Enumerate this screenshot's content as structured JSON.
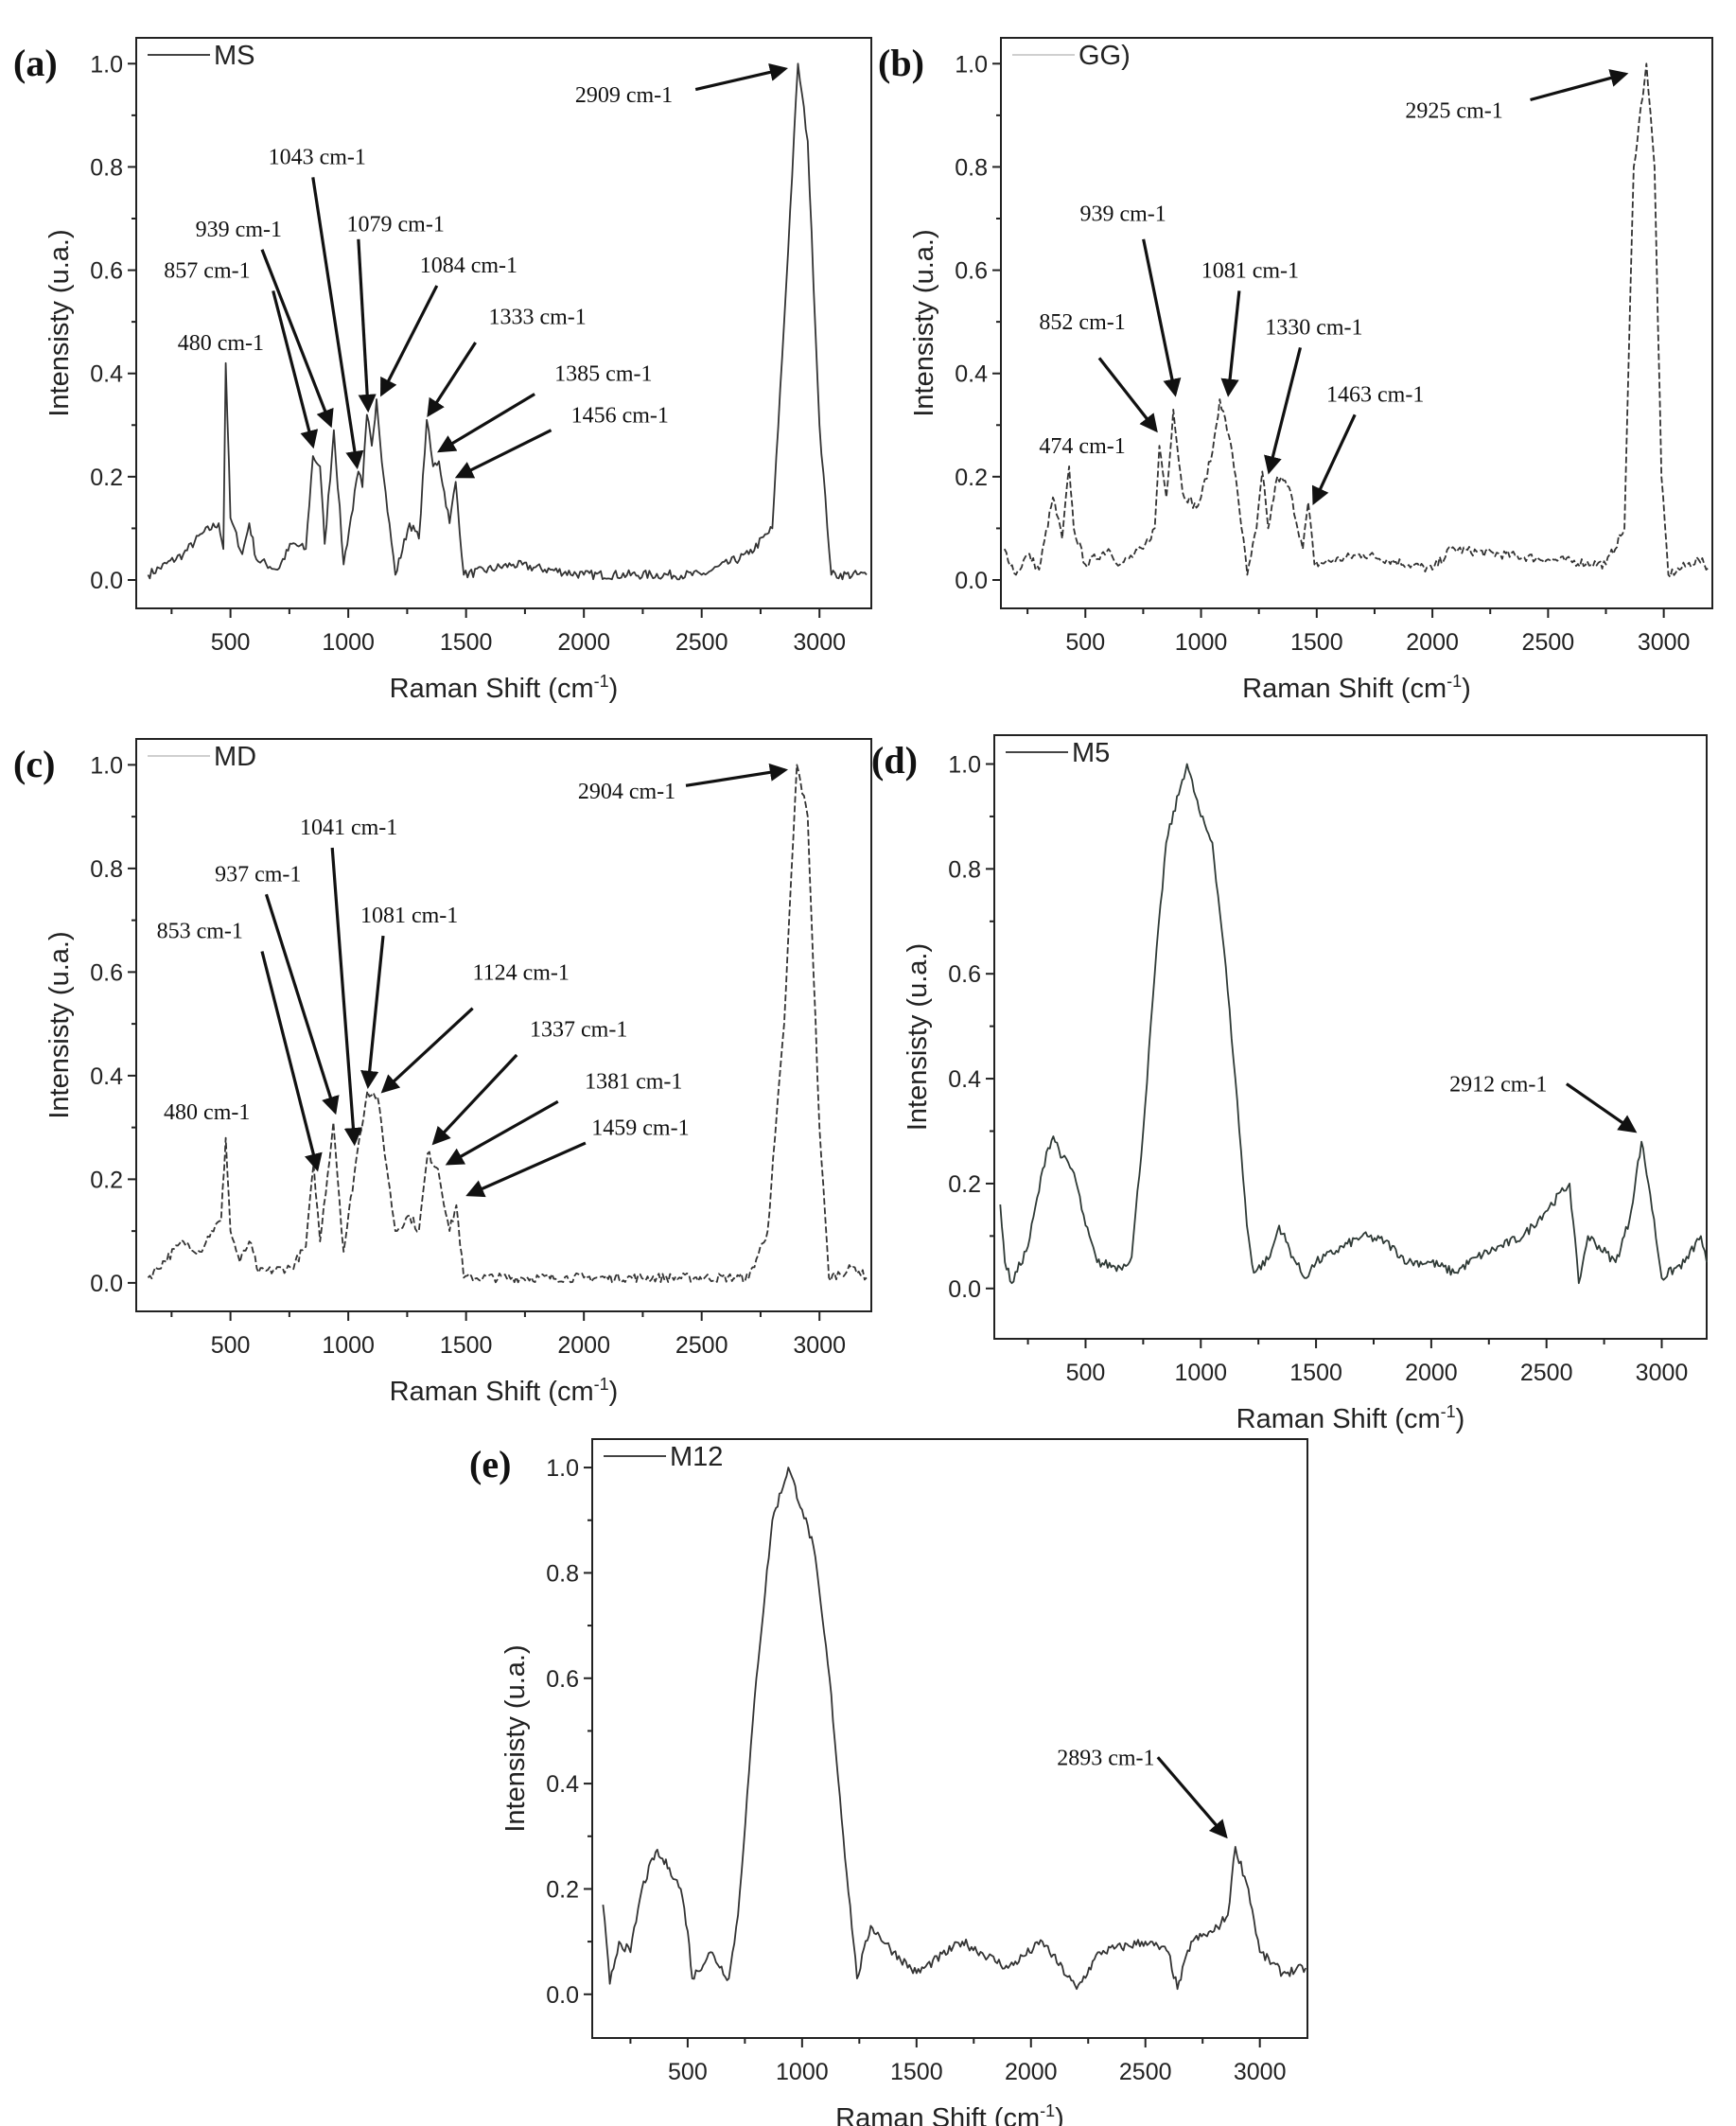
{
  "chart_data": [
    {
      "type": "line",
      "panel_label": "(a)",
      "legend": "MS",
      "line_style": "solid",
      "line_color": "#333333",
      "xlabel": "Raman Shift (cm-1)",
      "ylabel": "Intensisty (u.a.)",
      "xlim": [
        100,
        3220
      ],
      "ylim": [
        -0.055,
        1.05
      ],
      "xticks": [
        500,
        1000,
        1500,
        2000,
        2500,
        3000
      ],
      "xtick_labels": [
        "500",
        "1000",
        "1500",
        "2000",
        "2500",
        "3000"
      ],
      "yticks": [
        0,
        0.2,
        0.4,
        0.6,
        0.8,
        1.0
      ],
      "ytick_labels": [
        "0.0",
        "0.2",
        "0.4",
        "0.6",
        "0.8",
        "1.0"
      ],
      "x": [
        150,
        300,
        380,
        450,
        470,
        480,
        500,
        550,
        580,
        610,
        700,
        760,
        820,
        850,
        880,
        900,
        939,
        980,
        1043,
        1060,
        1079,
        1100,
        1120,
        1150,
        1200,
        1260,
        1300,
        1333,
        1360,
        1385,
        1430,
        1456,
        1490,
        1700,
        2000,
        2500,
        2700,
        2800,
        2850,
        2909,
        2950,
        3000,
        3050,
        3200
      ],
      "y": [
        0.01,
        0.05,
        0.09,
        0.11,
        0.06,
        0.42,
        0.12,
        0.05,
        0.11,
        0.04,
        0.02,
        0.07,
        0.06,
        0.24,
        0.22,
        0.07,
        0.29,
        0.03,
        0.21,
        0.18,
        0.32,
        0.26,
        0.35,
        0.2,
        0.01,
        0.11,
        0.08,
        0.31,
        0.22,
        0.23,
        0.11,
        0.19,
        0.01,
        0.03,
        0.01,
        0.01,
        0.05,
        0.1,
        0.5,
        1.0,
        0.85,
        0.3,
        0.01,
        0.01
      ],
      "annotations": [
        {
          "label": "480 cm-1",
          "text_at": [
            459,
            0.46
          ]
        },
        {
          "label": "857 cm-1",
          "text_at": [
            401,
            0.6
          ],
          "arrow_from": [
            681,
            0.56
          ],
          "arrow_to": [
            850,
            0.26
          ]
        },
        {
          "label": "939 cm-1",
          "text_at": [
            535,
            0.68
          ],
          "arrow_from": [
            634,
            0.64
          ],
          "arrow_to": [
            925,
            0.3
          ]
        },
        {
          "label": "1043 cm-1",
          "text_at": [
            868,
            0.82
          ],
          "arrow_from": [
            850,
            0.78
          ],
          "arrow_to": [
            1037,
            0.22
          ]
        },
        {
          "label": "1079 cm-1",
          "text_at": [
            1201,
            0.69
          ],
          "arrow_from": [
            1043,
            0.66
          ],
          "arrow_to": [
            1084,
            0.33
          ]
        },
        {
          "label": "1084 cm-1",
          "text_at": [
            1511,
            0.61
          ],
          "arrow_from": [
            1376,
            0.57
          ],
          "arrow_to": [
            1142,
            0.36
          ]
        },
        {
          "label": "1333 cm-1",
          "text_at": [
            1803,
            0.51
          ],
          "arrow_from": [
            1540,
            0.46
          ],
          "arrow_to": [
            1341,
            0.32
          ]
        },
        {
          "label": "1385 cm-1",
          "text_at": [
            2083,
            0.4
          ],
          "arrow_from": [
            1791,
            0.36
          ],
          "arrow_to": [
            1388,
            0.25
          ]
        },
        {
          "label": "1456 cm-1",
          "text_at": [
            2153,
            0.32
          ],
          "arrow_from": [
            1861,
            0.29
          ],
          "arrow_to": [
            1464,
            0.2
          ]
        },
        {
          "label": "2909 cm-1",
          "text_at": [
            2170,
            0.94
          ],
          "arrow_from": [
            2474,
            0.95
          ],
          "arrow_to": [
            2854,
            0.99
          ]
        }
      ]
    },
    {
      "type": "line",
      "panel_label": "(b)",
      "legend": "GG)",
      "line_style": "dashed",
      "line_color": "#333333",
      "xlabel": "Raman Shift (cm-1)",
      "ylabel": "Intensisty (u.a.)",
      "xlim": [
        135,
        3210
      ],
      "ylim": [
        -0.055,
        1.05
      ],
      "xticks": [
        500,
        1000,
        1500,
        2000,
        2500,
        3000
      ],
      "xtick_labels": [
        "500",
        "1000",
        "1500",
        "2000",
        "2500",
        "3000"
      ],
      "yticks": [
        0,
        0.2,
        0.4,
        0.6,
        0.8,
        1.0
      ],
      "ytick_labels": [
        "0.0",
        "0.2",
        "0.4",
        "0.6",
        "0.8",
        "1.0"
      ],
      "x": [
        150,
        200,
        250,
        300,
        360,
        400,
        430,
        450,
        500,
        600,
        650,
        750,
        800,
        820,
        850,
        880,
        920,
        980,
        1000,
        1050,
        1081,
        1120,
        1150,
        1200,
        1240,
        1265,
        1290,
        1330,
        1380,
        1440,
        1463,
        1490,
        1700,
        2000,
        2080,
        2500,
        2750,
        2830,
        2870,
        2925,
        2960,
        2990,
        3020,
        3150,
        3200
      ],
      "y": [
        0.06,
        0.01,
        0.05,
        0.02,
        0.16,
        0.08,
        0.22,
        0.1,
        0.03,
        0.06,
        0.03,
        0.06,
        0.1,
        0.26,
        0.16,
        0.33,
        0.17,
        0.14,
        0.16,
        0.25,
        0.35,
        0.28,
        0.2,
        0.01,
        0.1,
        0.21,
        0.1,
        0.2,
        0.18,
        0.06,
        0.15,
        0.03,
        0.05,
        0.02,
        0.06,
        0.04,
        0.03,
        0.1,
        0.8,
        1.0,
        0.8,
        0.2,
        0.01,
        0.04,
        0.02
      ],
      "annotations": [
        {
          "label": "474 cm-1",
          "text_at": [
            487,
            0.26
          ]
        },
        {
          "label": "852 cm-1",
          "text_at": [
            487,
            0.5
          ],
          "arrow_from": [
            560,
            0.43
          ],
          "arrow_to": [
            805,
            0.29
          ]
        },
        {
          "label": "939 cm-1",
          "text_at": [
            663,
            0.71
          ],
          "arrow_from": [
            751,
            0.66
          ],
          "arrow_to": [
            888,
            0.36
          ]
        },
        {
          "label": "1081 cm-1",
          "text_at": [
            1212,
            0.6
          ],
          "arrow_from": [
            1165,
            0.56
          ],
          "arrow_to": [
            1118,
            0.36
          ]
        },
        {
          "label": "1330 cm-1",
          "text_at": [
            1488,
            0.49
          ],
          "arrow_from": [
            1429,
            0.45
          ],
          "arrow_to": [
            1294,
            0.21
          ]
        },
        {
          "label": "1463 cm-1",
          "text_at": [
            1753,
            0.36
          ],
          "arrow_from": [
            1665,
            0.32
          ],
          "arrow_to": [
            1488,
            0.15
          ]
        },
        {
          "label": "2925 cm-1",
          "text_at": [
            2094,
            0.91
          ],
          "arrow_from": [
            2423,
            0.93
          ],
          "arrow_to": [
            2835,
            0.98
          ]
        }
      ]
    },
    {
      "type": "line",
      "panel_label": "(c)",
      "legend": "MD",
      "line_style": "dashed",
      "line_color": "#333333",
      "xlabel": "Raman Shift (cm-1)",
      "ylabel": "Intensisty (u.a.)",
      "xlim": [
        100,
        3220
      ],
      "ylim": [
        -0.055,
        1.05
      ],
      "xticks": [
        500,
        1000,
        1500,
        2000,
        2500,
        3000
      ],
      "xtick_labels": [
        "500",
        "1000",
        "1500",
        "2000",
        "2500",
        "3000"
      ],
      "yticks": [
        0,
        0.2,
        0.4,
        0.6,
        0.8,
        1.0
      ],
      "ytick_labels": [
        "0.0",
        "0.2",
        "0.4",
        "0.6",
        "0.8",
        "1.0"
      ],
      "x": [
        150,
        300,
        370,
        420,
        460,
        480,
        500,
        540,
        580,
        620,
        760,
        820,
        853,
        880,
        937,
        980,
        1041,
        1081,
        1124,
        1170,
        1200,
        1260,
        1300,
        1337,
        1381,
        1430,
        1459,
        1490,
        2000,
        2700,
        2780,
        2850,
        2904,
        2950,
        3000,
        3040,
        3150,
        3200
      ],
      "y": [
        0.01,
        0.08,
        0.06,
        0.1,
        0.12,
        0.28,
        0.1,
        0.04,
        0.08,
        0.02,
        0.03,
        0.07,
        0.23,
        0.08,
        0.31,
        0.06,
        0.26,
        0.37,
        0.36,
        0.2,
        0.1,
        0.13,
        0.1,
        0.25,
        0.22,
        0.1,
        0.15,
        0.01,
        0.01,
        0.01,
        0.1,
        0.5,
        1.0,
        0.9,
        0.3,
        0.01,
        0.03,
        0.01
      ],
      "annotations": [
        {
          "label": "480 cm-1",
          "text_at": [
            400,
            0.33
          ]
        },
        {
          "label": "853 cm-1",
          "text_at": [
            370,
            0.68
          ],
          "arrow_from": [
            634,
            0.64
          ],
          "arrow_to": [
            868,
            0.22
          ]
        },
        {
          "label": "937 cm-1",
          "text_at": [
            617,
            0.79
          ],
          "arrow_from": [
            652,
            0.75
          ],
          "arrow_to": [
            944,
            0.33
          ]
        },
        {
          "label": "1041 cm-1",
          "text_at": [
            1002,
            0.88
          ],
          "arrow_from": [
            932,
            0.84
          ],
          "arrow_to": [
            1026,
            0.27
          ]
        },
        {
          "label": "1081 cm-1",
          "text_at": [
            1259,
            0.71
          ],
          "arrow_from": [
            1148,
            0.67
          ],
          "arrow_to": [
            1084,
            0.38
          ]
        },
        {
          "label": "1124 cm-1",
          "text_at": [
            1733,
            0.6
          ],
          "arrow_from": [
            1528,
            0.53
          ],
          "arrow_to": [
            1148,
            0.37
          ]
        },
        {
          "label": "1337 cm-1",
          "text_at": [
            1978,
            0.49
          ],
          "arrow_from": [
            1715,
            0.44
          ],
          "arrow_to": [
            1364,
            0.27
          ]
        },
        {
          "label": "1381 cm-1",
          "text_at": [
            2211,
            0.39
          ],
          "arrow_from": [
            1890,
            0.35
          ],
          "arrow_to": [
            1423,
            0.23
          ]
        },
        {
          "label": "1459 cm-1",
          "text_at": [
            2240,
            0.3
          ],
          "arrow_from": [
            2007,
            0.27
          ],
          "arrow_to": [
            1510,
            0.17
          ]
        },
        {
          "label": "2904 cm-1",
          "text_at": [
            2182,
            0.95
          ],
          "arrow_from": [
            2433,
            0.96
          ],
          "arrow_to": [
            2854,
            0.99
          ]
        }
      ]
    },
    {
      "type": "line",
      "panel_label": "(d)",
      "legend": "M5",
      "line_style": "solid",
      "line_color": "#2f3a36",
      "xlabel": "Raman Shift (cm-1)",
      "ylabel": "Intensisty (u.a.)",
      "xlim": [
        104,
        3195
      ],
      "ylim": [
        -0.096,
        1.055
      ],
      "xticks": [
        500,
        1000,
        1500,
        2000,
        2500,
        3000
      ],
      "xtick_labels": [
        "500",
        "1000",
        "1500",
        "2000",
        "2500",
        "3000"
      ],
      "yticks": [
        0,
        0.2,
        0.4,
        0.6,
        0.8,
        1.0
      ],
      "ytick_labels": [
        "0.0",
        "0.2",
        "0.4",
        "0.6",
        "0.8",
        "1.0"
      ],
      "x": [
        130,
        150,
        180,
        250,
        330,
        360,
        400,
        450,
        500,
        550,
        650,
        700,
        750,
        800,
        850,
        920,
        940,
        1000,
        1050,
        1100,
        1150,
        1200,
        1230,
        1300,
        1340,
        1400,
        1450,
        1500,
        1700,
        1800,
        1900,
        2000,
        2100,
        2200,
        2400,
        2600,
        2640,
        2680,
        2800,
        2860,
        2912,
        2950,
        3000,
        3100,
        3170,
        3195
      ],
      "y": [
        0.16,
        0.05,
        0.01,
        0.08,
        0.26,
        0.29,
        0.25,
        0.22,
        0.12,
        0.05,
        0.04,
        0.06,
        0.3,
        0.6,
        0.85,
        0.97,
        1.0,
        0.9,
        0.85,
        0.65,
        0.4,
        0.12,
        0.03,
        0.06,
        0.12,
        0.06,
        0.02,
        0.05,
        0.1,
        0.09,
        0.05,
        0.05,
        0.03,
        0.06,
        0.1,
        0.2,
        0.01,
        0.1,
        0.05,
        0.13,
        0.28,
        0.18,
        0.02,
        0.05,
        0.1,
        0.05
      ],
      "annotations": [
        {
          "label": "2912 cm-1",
          "text_at": [
            2291,
            0.39
          ],
          "arrow_from": [
            2587,
            0.39
          ],
          "arrow_to": [
            2882,
            0.3
          ]
        }
      ]
    },
    {
      "type": "line",
      "panel_label": "(e)",
      "legend": "M12",
      "line_style": "solid",
      "line_color": "#333333",
      "xlabel": "Raman Shift (cm-1)",
      "ylabel": "Intensisty (u.a.)",
      "xlim": [
        83,
        3208
      ],
      "ylim": [
        -0.083,
        1.054
      ],
      "xticks": [
        500,
        1000,
        1500,
        2000,
        2500,
        3000
      ],
      "xtick_labels": [
        "500",
        "1000",
        "1500",
        "2000",
        "2500",
        "3000"
      ],
      "yticks": [
        0,
        0.2,
        0.4,
        0.6,
        0.8,
        1.0
      ],
      "ytick_labels": [
        "0.0",
        "0.2",
        "0.4",
        "0.6",
        "0.8",
        "1.0"
      ],
      "x": [
        130,
        160,
        200,
        250,
        300,
        360,
        420,
        470,
        500,
        520,
        600,
        680,
        720,
        800,
        870,
        940,
        1000,
        1050,
        1120,
        1180,
        1240,
        1300,
        1400,
        1500,
        1700,
        1900,
        2050,
        2200,
        2300,
        2500,
        2600,
        2640,
        2700,
        2800,
        2860,
        2893,
        2950,
        3000,
        3100,
        3200
      ],
      "y": [
        0.17,
        0.02,
        0.1,
        0.08,
        0.2,
        0.27,
        0.24,
        0.2,
        0.12,
        0.03,
        0.08,
        0.03,
        0.15,
        0.6,
        0.9,
        1.0,
        0.92,
        0.85,
        0.6,
        0.3,
        0.03,
        0.13,
        0.08,
        0.04,
        0.1,
        0.05,
        0.1,
        0.01,
        0.08,
        0.1,
        0.08,
        0.01,
        0.1,
        0.12,
        0.15,
        0.28,
        0.2,
        0.08,
        0.04,
        0.05
      ],
      "annotations": [
        {
          "label": "2893 cm-1",
          "text_at": [
            2327,
            0.45
          ],
          "arrow_from": [
            2554,
            0.45
          ],
          "arrow_to": [
            2851,
            0.3
          ]
        }
      ]
    }
  ]
}
